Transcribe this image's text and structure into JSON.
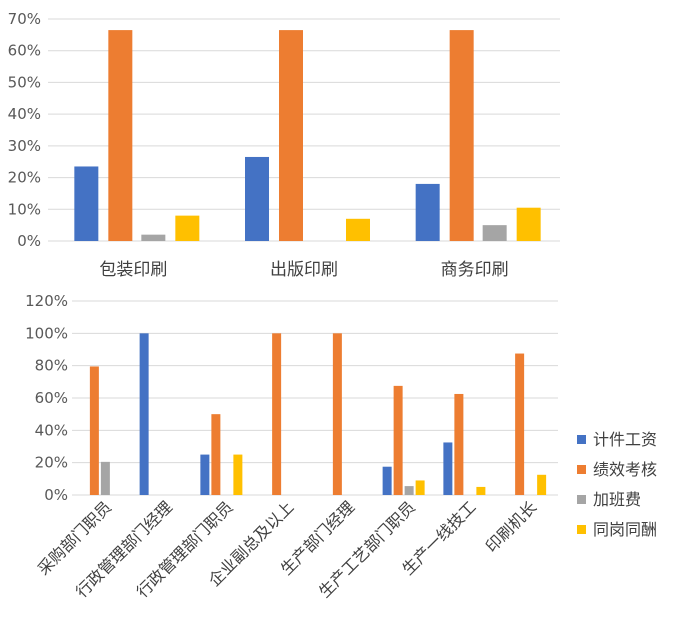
{
  "chart_data": [
    {
      "type": "bar",
      "categories": [
        "包装印刷",
        "出版印刷",
        "商务印刷"
      ],
      "series": [
        {
          "name": "计件工资",
          "values": [
            23.5,
            26.5,
            18
          ]
        },
        {
          "name": "绩效考核",
          "values": [
            66.5,
            66.5,
            66.5
          ]
        },
        {
          "name": "加班费",
          "values": [
            2,
            0,
            5
          ]
        },
        {
          "name": "同岗同酬",
          "values": [
            8,
            7,
            10.5
          ]
        }
      ],
      "yticks": [
        "0%",
        "10%",
        "20%",
        "30%",
        "40%",
        "50%",
        "60%",
        "70%"
      ],
      "ylim": [
        0,
        70
      ],
      "grid": true
    },
    {
      "type": "bar",
      "categories": [
        "采购部门职员",
        "行政管理部门经理",
        "行政管理部门职员",
        "企业副总及以上",
        "生产部门经理",
        "生产工艺部门职员",
        "生产一线技工",
        "印刷机长"
      ],
      "series": [
        {
          "name": "计件工资",
          "values": [
            0,
            100,
            25,
            0,
            0,
            17.5,
            32.5,
            0
          ]
        },
        {
          "name": "绩效考核",
          "values": [
            79.5,
            0,
            50,
            100,
            100,
            67.5,
            62.5,
            87.5
          ]
        },
        {
          "name": "加班费",
          "values": [
            20.5,
            0,
            0,
            0,
            0,
            5.5,
            0,
            0
          ]
        },
        {
          "name": "同岗同酬",
          "values": [
            0,
            0,
            25,
            0,
            0,
            9,
            5,
            12.5
          ]
        }
      ],
      "yticks": [
        "0%",
        "20%",
        "40%",
        "60%",
        "80%",
        "100%",
        "120%"
      ],
      "ylim": [
        0,
        120
      ],
      "grid": true,
      "legend": "right"
    }
  ],
  "colors": [
    "#4472c4",
    "#ed7d31",
    "#a5a5a5",
    "#ffc000"
  ]
}
